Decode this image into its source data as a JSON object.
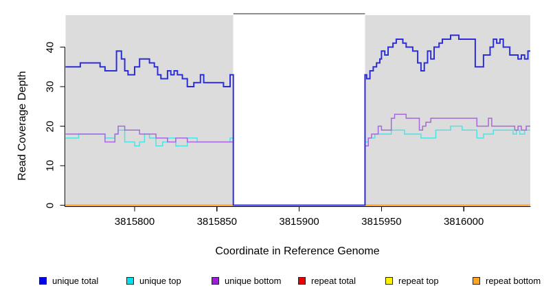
{
  "chart_data": {
    "type": "step-line",
    "title": "",
    "xlabel": "Coordinate in Reference Genome",
    "ylabel": "Read Coverage Depth",
    "x_ticks": [
      3815800,
      3815850,
      3815900,
      3815950,
      3816000
    ],
    "y_ticks": [
      0,
      10,
      20,
      30,
      40
    ],
    "x_range": [
      3815758,
      3816041
    ],
    "y_range": [
      0,
      48
    ],
    "grid": false,
    "background_color": "#dcdcdc",
    "gap_border_color": "#6a6a6a",
    "axis_color": "#000000",
    "covered_regions": [
      [
        3815758,
        3815860
      ],
      [
        3815940,
        3816041
      ]
    ],
    "zero_coverage_gap": [
      3815860,
      3815940
    ],
    "series": [
      {
        "name": "repeat total",
        "color": "#dd0000",
        "width": 1.4,
        "points": [
          [
            3815758,
            0
          ]
        ]
      },
      {
        "name": "repeat top",
        "color": "#f0f000",
        "width": 1.4,
        "points": [
          [
            3815758,
            0
          ]
        ]
      },
      {
        "name": "repeat bottom",
        "color": "#ff9d29",
        "width": 2,
        "points": [
          [
            3815758,
            0
          ]
        ]
      },
      {
        "name": "unique top",
        "color": "#4ee2e4",
        "width": 1.5,
        "points": [
          [
            3815758,
            17
          ],
          [
            3815766,
            18
          ],
          [
            3815782,
            17
          ],
          [
            3815788,
            18
          ],
          [
            3815790,
            19
          ],
          [
            3815794,
            16
          ],
          [
            3815800,
            15
          ],
          [
            3815803,
            16
          ],
          [
            3815806,
            18
          ],
          [
            3815809,
            17
          ],
          [
            3815813,
            15
          ],
          [
            3815817,
            16
          ],
          [
            3815820,
            17
          ],
          [
            3815825,
            15
          ],
          [
            3815832,
            17
          ],
          [
            3815838,
            16
          ],
          [
            3815858,
            17
          ],
          [
            3815860,
            0
          ],
          [
            3815940,
            16
          ],
          [
            3815942,
            17
          ],
          [
            3815946,
            18
          ],
          [
            3815956,
            19
          ],
          [
            3815964,
            18
          ],
          [
            3815974,
            17
          ],
          [
            3815983,
            19
          ],
          [
            3815992,
            20
          ],
          [
            3815999,
            19
          ],
          [
            3816008,
            17
          ],
          [
            3816012,
            18
          ],
          [
            3816018,
            19
          ],
          [
            3816030,
            18
          ],
          [
            3816032,
            19
          ],
          [
            3816034,
            18
          ],
          [
            3816037,
            19
          ]
        ]
      },
      {
        "name": "unique bottom",
        "color": "#a766dd",
        "width": 1.5,
        "points": [
          [
            3815758,
            18
          ],
          [
            3815782,
            16
          ],
          [
            3815788,
            18
          ],
          [
            3815790,
            20
          ],
          [
            3815794,
            19
          ],
          [
            3815803,
            18
          ],
          [
            3815813,
            17
          ],
          [
            3815820,
            16
          ],
          [
            3815825,
            17
          ],
          [
            3815832,
            16
          ],
          [
            3815858,
            16
          ],
          [
            3815860,
            0
          ],
          [
            3815940,
            15
          ],
          [
            3815942,
            17
          ],
          [
            3815944,
            18
          ],
          [
            3815948,
            20
          ],
          [
            3815950,
            19
          ],
          [
            3815956,
            22
          ],
          [
            3815958,
            23
          ],
          [
            3815965,
            22
          ],
          [
            3815973,
            19
          ],
          [
            3815975,
            20
          ],
          [
            3815977,
            21
          ],
          [
            3815980,
            22
          ],
          [
            3816008,
            20
          ],
          [
            3816015,
            22
          ],
          [
            3816017,
            20
          ],
          [
            3816031,
            19
          ],
          [
            3816033,
            20
          ],
          [
            3816035,
            19
          ],
          [
            3816038,
            20
          ]
        ]
      },
      {
        "name": "unique total",
        "color": "#2d2dd8",
        "width": 2,
        "points": [
          [
            3815758,
            35
          ],
          [
            3815767,
            36
          ],
          [
            3815779,
            35
          ],
          [
            3815782,
            34
          ],
          [
            3815789,
            39
          ],
          [
            3815792,
            37
          ],
          [
            3815794,
            34
          ],
          [
            3815796,
            33
          ],
          [
            3815800,
            35
          ],
          [
            3815803,
            37
          ],
          [
            3815809,
            36
          ],
          [
            3815812,
            35
          ],
          [
            3815814,
            33
          ],
          [
            3815816,
            32
          ],
          [
            3815820,
            34
          ],
          [
            3815822,
            33
          ],
          [
            3815824,
            34
          ],
          [
            3815826,
            33
          ],
          [
            3815829,
            32
          ],
          [
            3815832,
            30
          ],
          [
            3815836,
            31
          ],
          [
            3815840,
            33
          ],
          [
            3815842,
            31
          ],
          [
            3815854,
            30
          ],
          [
            3815858,
            33
          ],
          [
            3815860,
            0
          ],
          [
            3815940,
            33
          ],
          [
            3815941,
            32
          ],
          [
            3815943,
            34
          ],
          [
            3815945,
            35
          ],
          [
            3815947,
            36
          ],
          [
            3815949,
            37
          ],
          [
            3815950,
            39
          ],
          [
            3815952,
            38
          ],
          [
            3815954,
            40
          ],
          [
            3815957,
            41
          ],
          [
            3815959,
            42
          ],
          [
            3815963,
            41
          ],
          [
            3815965,
            40
          ],
          [
            3815969,
            39
          ],
          [
            3815972,
            36
          ],
          [
            3815974,
            34
          ],
          [
            3815976,
            36
          ],
          [
            3815978,
            39
          ],
          [
            3815980,
            37
          ],
          [
            3815982,
            40
          ],
          [
            3815985,
            41
          ],
          [
            3815987,
            42
          ],
          [
            3815992,
            43
          ],
          [
            3815997,
            42
          ],
          [
            3816007,
            35
          ],
          [
            3816012,
            38
          ],
          [
            3816016,
            40
          ],
          [
            3816018,
            42
          ],
          [
            3816020,
            41
          ],
          [
            3816022,
            42
          ],
          [
            3816024,
            40
          ],
          [
            3816028,
            38
          ],
          [
            3816033,
            37
          ],
          [
            3816035,
            38
          ],
          [
            3816037,
            37
          ],
          [
            3816039,
            39
          ]
        ]
      }
    ]
  },
  "legend": {
    "items": [
      {
        "label": "unique total",
        "color": "#0000ee"
      },
      {
        "label": "unique top",
        "color": "#00e0ee"
      },
      {
        "label": "unique bottom",
        "color": "#9a1fd6"
      },
      {
        "label": "repeat total",
        "color": "#ee0000"
      },
      {
        "label": "repeat top",
        "color": "#fff200"
      },
      {
        "label": "repeat bottom",
        "color": "#ffa41e"
      }
    ]
  }
}
